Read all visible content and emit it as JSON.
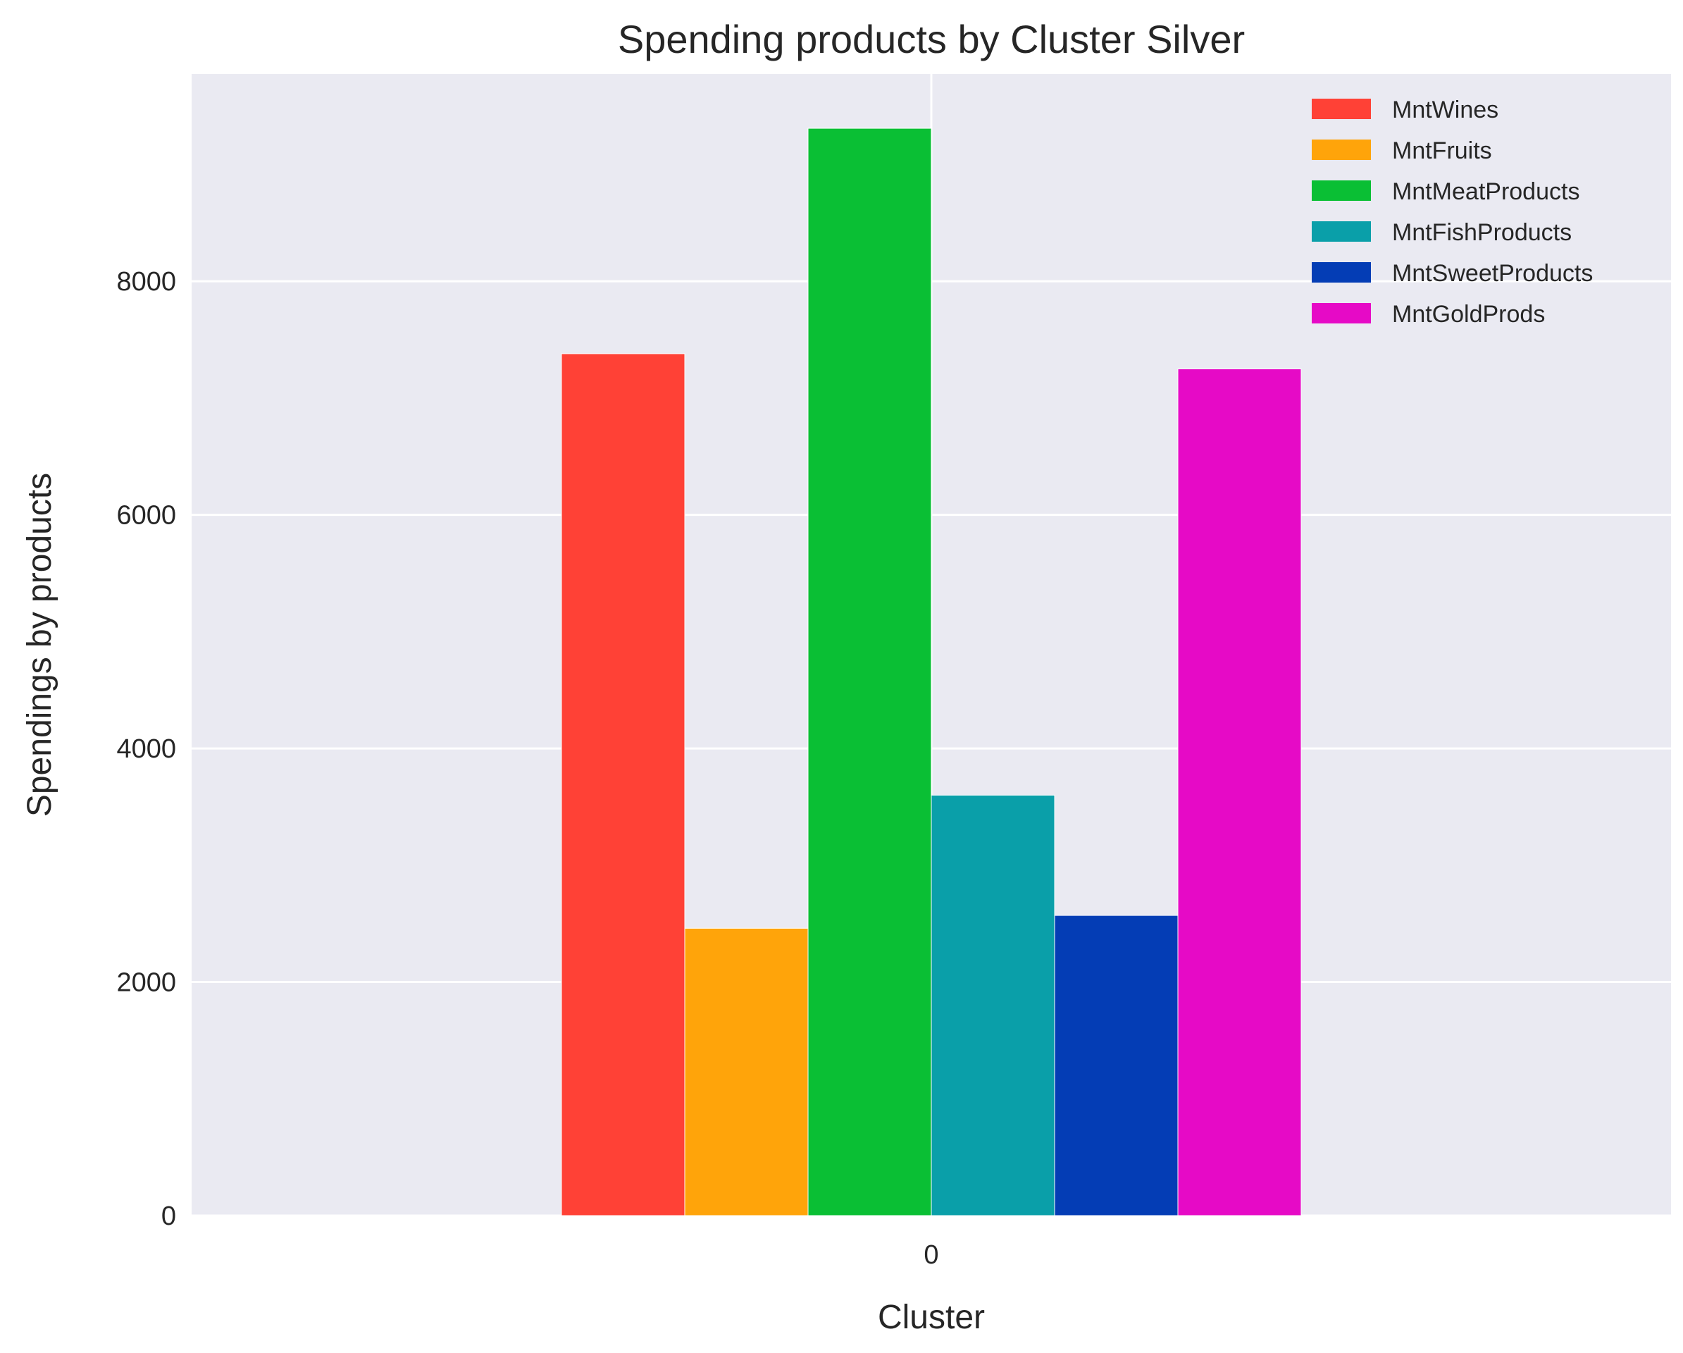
{
  "chart_data": {
    "type": "bar",
    "title": "Spending products by Cluster Silver",
    "xlabel": "Cluster",
    "ylabel": "Spendings by products",
    "categories": [
      "0"
    ],
    "series": [
      {
        "name": "MntWines",
        "values": [
          7380
        ],
        "color": "#ff4136"
      },
      {
        "name": "MntFruits",
        "values": [
          2460
        ],
        "color": "#ffa40a"
      },
      {
        "name": "MntMeatProducts",
        "values": [
          9310
        ],
        "color": "#0abf34"
      },
      {
        "name": "MntFishProducts",
        "values": [
          3600
        ],
        "color": "#0a9fa9"
      },
      {
        "name": "MntSweetProducts",
        "values": [
          2570
        ],
        "color": "#043db5"
      },
      {
        "name": "MntGoldProds",
        "values": [
          7250
        ],
        "color": "#e60ac6"
      }
    ],
    "y_ticks": [
      0,
      2000,
      4000,
      6000,
      8000
    ],
    "ylim": [
      0,
      9775
    ],
    "grid": true,
    "legend_position": "top-right",
    "background_color": "#eaeaf2"
  }
}
